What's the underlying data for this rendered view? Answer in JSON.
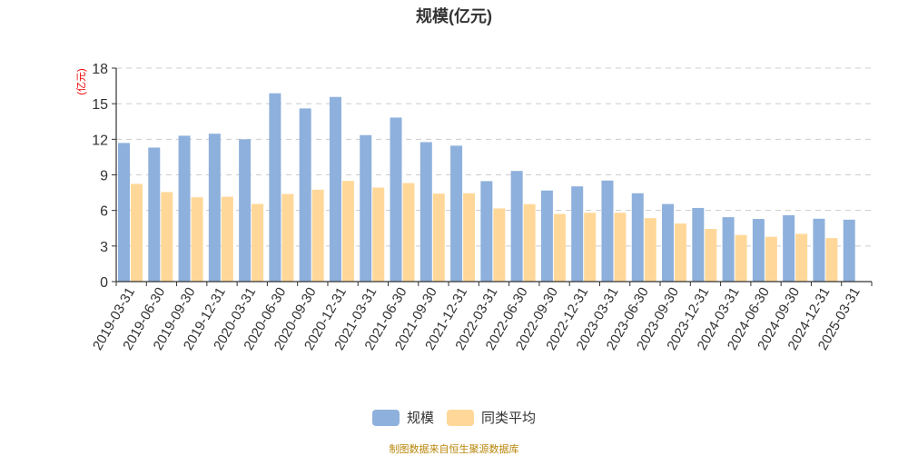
{
  "title": "规模(亿元)",
  "y_unit": "(亿元)",
  "legend": [
    {
      "label": "规模",
      "color": "#8eb0dc"
    },
    {
      "label": "同类平均",
      "color": "#ffd899"
    }
  ],
  "source": "制图数据来自恒生聚源数据库",
  "chart_data": {
    "type": "bar",
    "title": "规模(亿元)",
    "xlabel": "",
    "ylabel": "(亿元)",
    "ylim": [
      0,
      18
    ],
    "yticks": [
      0,
      3,
      6,
      9,
      12,
      15,
      18
    ],
    "grid": true,
    "legend_position": "bottom",
    "categories": [
      "2019-03-31",
      "2019-06-30",
      "2019-09-30",
      "2019-12-31",
      "2020-03-31",
      "2020-06-30",
      "2020-09-30",
      "2020-12-31",
      "2021-03-31",
      "2021-06-30",
      "2021-09-30",
      "2021-12-31",
      "2022-03-31",
      "2022-06-30",
      "2022-09-30",
      "2022-12-31",
      "2023-03-31",
      "2023-06-30",
      "2023-09-30",
      "2023-12-31",
      "2024-03-31",
      "2024-06-30",
      "2024-09-30",
      "2024-12-31",
      "2025-03-31"
    ],
    "series": [
      {
        "name": "规模",
        "color": "#8eb0dc",
        "values": [
          11.69,
          11.3,
          12.3,
          12.47,
          12.0,
          15.88,
          14.6,
          15.57,
          12.35,
          13.83,
          11.76,
          11.46,
          8.47,
          9.33,
          7.68,
          8.03,
          8.52,
          7.45,
          6.54,
          6.21,
          5.43,
          5.28,
          5.6,
          5.3,
          5.22
        ]
      },
      {
        "name": "同类平均",
        "color": "#ffd899",
        "values": [
          8.24,
          7.55,
          7.11,
          7.16,
          6.55,
          7.39,
          7.75,
          8.49,
          7.93,
          8.31,
          7.42,
          7.45,
          6.17,
          6.53,
          5.71,
          5.81,
          5.81,
          5.35,
          4.9,
          4.44,
          3.93,
          3.78,
          4.03,
          3.67,
          null
        ]
      }
    ]
  }
}
